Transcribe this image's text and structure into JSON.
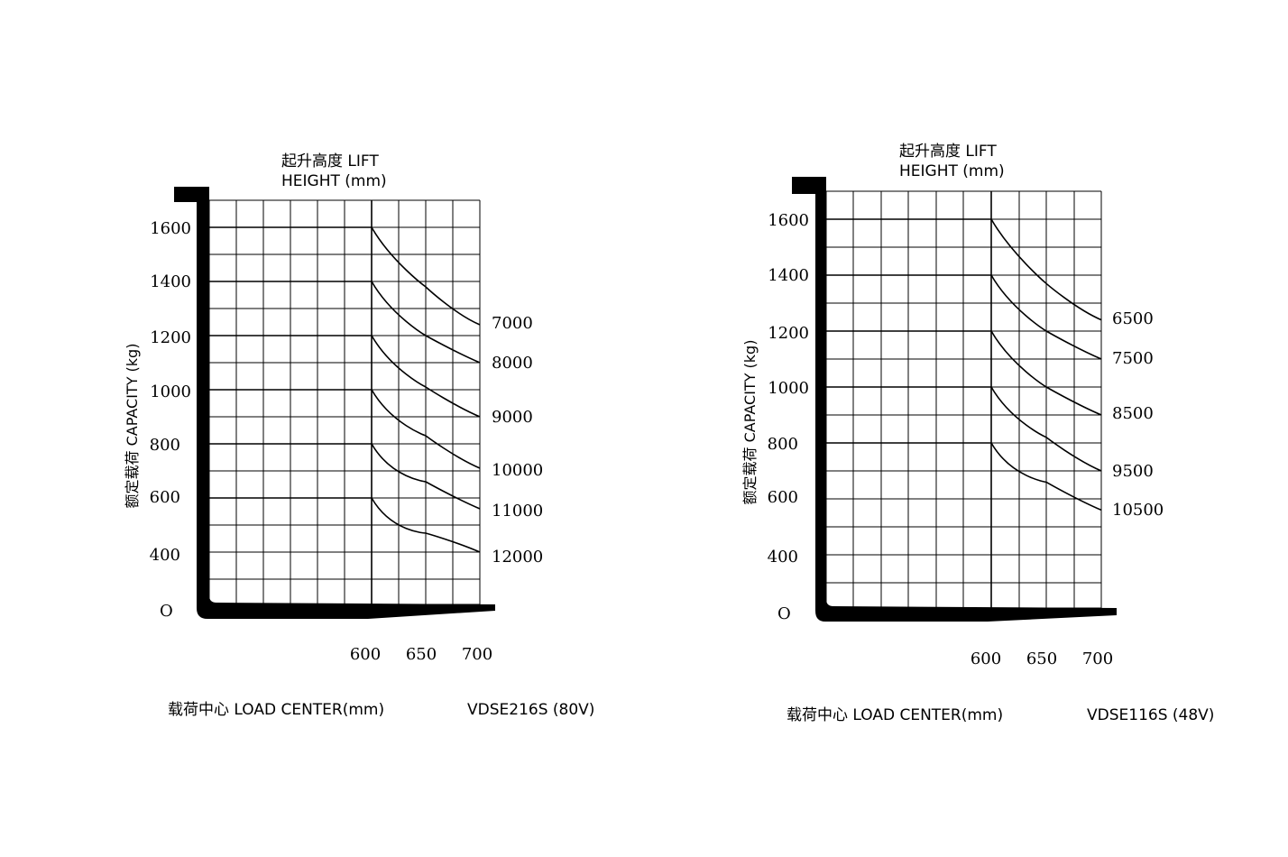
{
  "colors": {
    "ink": "#000000",
    "grid": "#000000",
    "background": "#ffffff"
  },
  "chart_data": [
    {
      "type": "line",
      "model": "VDSE216S (80V)",
      "title_lines": [
        "起升高度 LIFT",
        "HEIGHT (mm)"
      ],
      "ylabel": "额定载荷 CAPACITY (kg)",
      "xlabel": "载荷中心  LOAD CENTER(mm)",
      "y_ticks": [
        "1600",
        "1400",
        "1200",
        "1000",
        "800",
        "600",
        "400"
      ],
      "origin_label": "O",
      "x_ticks": [
        "600",
        "650",
        "700"
      ],
      "x_tick_values": [
        600,
        650,
        700
      ],
      "series": [
        {
          "name": "7000",
          "x": [
            500,
            600,
            650,
            700
          ],
          "y": [
            1600,
            1600,
            1380,
            1240
          ]
        },
        {
          "name": "8000",
          "x": [
            500,
            600,
            650,
            700
          ],
          "y": [
            1400,
            1400,
            1200,
            1100
          ]
        },
        {
          "name": "9000",
          "x": [
            500,
            600,
            650,
            700
          ],
          "y": [
            1200,
            1200,
            1010,
            900
          ]
        },
        {
          "name": "10000",
          "x": [
            500,
            600,
            650,
            700
          ],
          "y": [
            1000,
            1000,
            830,
            710
          ]
        },
        {
          "name": "11000",
          "x": [
            500,
            600,
            650,
            700
          ],
          "y": [
            800,
            800,
            660,
            560
          ]
        },
        {
          "name": "12000",
          "x": [
            500,
            600,
            650,
            700
          ],
          "y": [
            600,
            600,
            470,
            400
          ]
        }
      ]
    },
    {
      "type": "line",
      "model": "VDSE116S (48V)",
      "title_lines": [
        "起升高度 LIFT",
        "HEIGHT (mm)"
      ],
      "ylabel": "额定载荷 CAPACITY (kg)",
      "xlabel": "载荷中心  LOAD CENTER(mm)",
      "y_ticks": [
        "1600",
        "1400",
        "1200",
        "1000",
        "800",
        "600",
        "400"
      ],
      "origin_label": "O",
      "x_ticks": [
        "600",
        "650",
        "700"
      ],
      "x_tick_values": [
        600,
        650,
        700
      ],
      "series": [
        {
          "name": "6500",
          "x": [
            500,
            600,
            650,
            700
          ],
          "y": [
            1600,
            1600,
            1370,
            1240
          ]
        },
        {
          "name": "7500",
          "x": [
            500,
            600,
            650,
            700
          ],
          "y": [
            1400,
            1400,
            1200,
            1100
          ]
        },
        {
          "name": "8500",
          "x": [
            500,
            600,
            650,
            700
          ],
          "y": [
            1200,
            1200,
            1000,
            900
          ]
        },
        {
          "name": "9500",
          "x": [
            500,
            600,
            650,
            700
          ],
          "y": [
            1000,
            1000,
            820,
            700
          ]
        },
        {
          "name": "10500",
          "x": [
            500,
            600,
            650,
            700
          ],
          "y": [
            800,
            800,
            660,
            560
          ]
        }
      ]
    }
  ]
}
